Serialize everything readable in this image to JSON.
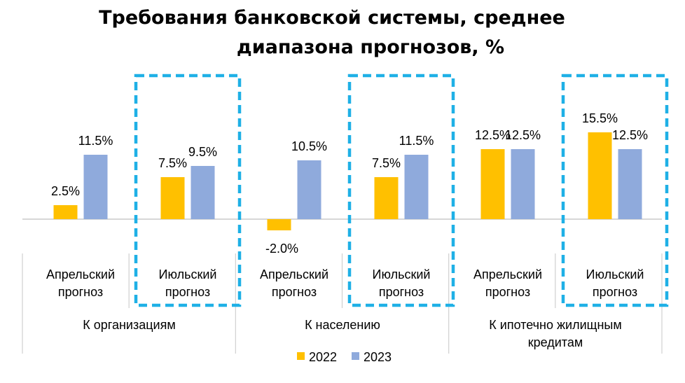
{
  "chart_data": {
    "type": "bar",
    "title_lines": [
      "Требования банковской системы, среднее",
      "диапазона прогнозов, %"
    ],
    "groups": [
      {
        "name": "К организациям",
        "categories": [
          {
            "label": [
              "Апрельский",
              "прогноз"
            ],
            "values": [
              2.5,
              11.5
            ],
            "highlighted": false
          },
          {
            "label": [
              "Июльский",
              "прогноз"
            ],
            "values": [
              7.5,
              9.5
            ],
            "highlighted": true
          }
        ]
      },
      {
        "name": "К населению",
        "categories": [
          {
            "label": [
              "Апрельский",
              "прогноз"
            ],
            "values": [
              -2.0,
              10.5
            ],
            "highlighted": false
          },
          {
            "label": [
              "Июльский",
              "прогноз"
            ],
            "values": [
              7.5,
              11.5
            ],
            "highlighted": true
          }
        ]
      },
      {
        "name": [
          "К ипотечно жилищным",
          "кредитам"
        ],
        "categories": [
          {
            "label": [
              "Апрельский",
              "прогноз"
            ],
            "values": [
              12.5,
              12.5
            ],
            "highlighted": false
          },
          {
            "label": [
              "Июльский",
              "прогноз"
            ],
            "values": [
              15.5,
              12.5
            ],
            "highlighted": true
          }
        ]
      }
    ],
    "series": [
      {
        "name": "2022",
        "color": "#FFC000"
      },
      {
        "name": "2023",
        "color": "#8FAADC"
      }
    ],
    "value_suffix": "%",
    "ylim": [
      -2.5,
      17
    ],
    "highlight_color": "#1FB0E6",
    "legend_position": "bottom",
    "grid": false
  }
}
